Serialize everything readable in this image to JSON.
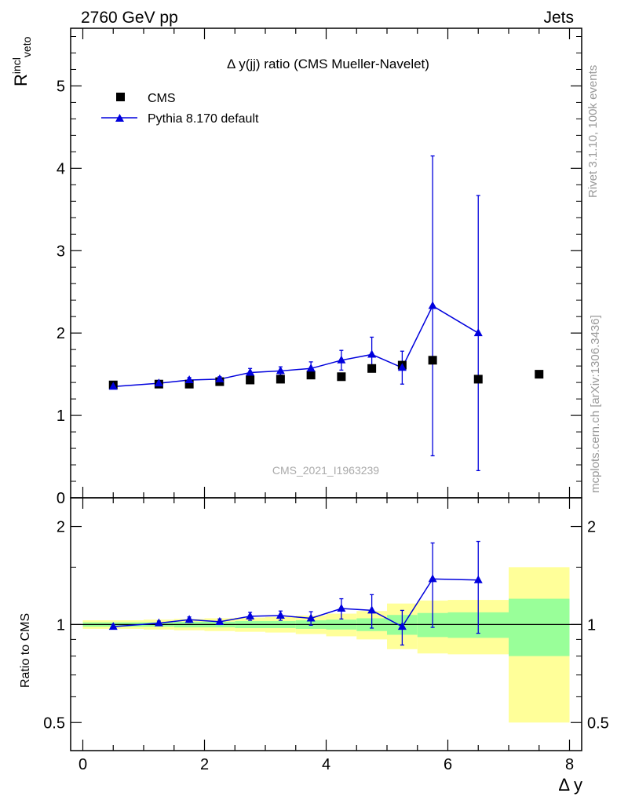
{
  "header": {
    "left": "2760 GeV pp",
    "right": "Jets"
  },
  "side_labels": {
    "rivet": "Rivet 3.1.10,  100k events",
    "mcplots": "mcplots.cern.ch [arXiv:1306.3436]"
  },
  "colors": {
    "data": "#000000",
    "mc": "#0000dd",
    "band_inner": "#99ff99",
    "band_outer": "#ffff99"
  },
  "chart_data": [
    {
      "type": "scatter",
      "title": "Δ y(jj) ratio (CMS Mueller-Navelet)",
      "ylabel": "R^incl_veto",
      "watermark": "CMS_2021_I1963239",
      "ylim": [
        0,
        5.7
      ],
      "xlim": [
        -0.2,
        8.2
      ],
      "yticks": [
        "0",
        "1",
        "2",
        "3",
        "4",
        "5"
      ],
      "legend": [
        "CMS",
        "Pythia 8.170 default"
      ],
      "legend_position": "top-left",
      "series": [
        {
          "name": "CMS",
          "marker": "square",
          "x": [
            0.5,
            1.25,
            1.75,
            2.25,
            2.75,
            3.25,
            3.75,
            4.25,
            4.75,
            5.25,
            5.75,
            6.5,
            7.5
          ],
          "y": [
            1.37,
            1.38,
            1.38,
            1.41,
            1.43,
            1.44,
            1.49,
            1.47,
            1.57,
            1.61,
            1.67,
            1.44,
            1.5
          ]
        },
        {
          "name": "Pythia 8.170 default",
          "marker": "triangle",
          "x": [
            0.5,
            1.25,
            1.75,
            2.25,
            2.75,
            3.25,
            3.75,
            4.25,
            4.75,
            5.25,
            5.75,
            6.5
          ],
          "y": [
            1.35,
            1.39,
            1.43,
            1.44,
            1.52,
            1.54,
            1.57,
            1.67,
            1.74,
            1.58,
            2.33,
            2.0
          ],
          "err": [
            0.02,
            0.02,
            0.03,
            0.03,
            0.05,
            0.05,
            0.08,
            0.12,
            0.21,
            0.2,
            1.82,
            1.67
          ]
        }
      ]
    },
    {
      "type": "line",
      "ylabel": "Ratio to CMS",
      "xlabel": "Δ y",
      "scale": "log",
      "ylim": [
        0.41,
        2.45
      ],
      "xlim": [
        -0.2,
        8.2
      ],
      "xticks": [
        "0",
        "2",
        "4",
        "6",
        "8"
      ],
      "yticks": [
        "0.5",
        "1",
        "2"
      ],
      "grid": false,
      "series": [
        {
          "name": "Pythia 8.170 default",
          "x": [
            0.5,
            1.25,
            1.75,
            2.25,
            2.75,
            3.25,
            3.75,
            4.25,
            4.75,
            5.25,
            5.75,
            6.5
          ],
          "y": [
            0.985,
            1.01,
            1.035,
            1.02,
            1.06,
            1.065,
            1.045,
            1.12,
            1.105,
            0.985,
            1.38,
            1.37
          ],
          "err": [
            0.015,
            0.015,
            0.02,
            0.02,
            0.03,
            0.035,
            0.05,
            0.08,
            0.13,
            0.12,
            0.4,
            0.43
          ]
        }
      ],
      "bands": [
        {
          "x0": 0.0,
          "x1": 0.5,
          "inner": [
            0.985,
            1.015
          ],
          "outer": [
            0.97,
            1.03
          ]
        },
        {
          "x0": 0.5,
          "x1": 1.0,
          "inner": [
            0.985,
            1.015
          ],
          "outer": [
            0.97,
            1.03
          ]
        },
        {
          "x0": 1.0,
          "x1": 1.5,
          "inner": [
            0.985,
            1.015
          ],
          "outer": [
            0.965,
            1.035
          ]
        },
        {
          "x0": 1.5,
          "x1": 2.0,
          "inner": [
            0.98,
            1.02
          ],
          "outer": [
            0.96,
            1.04
          ]
        },
        {
          "x0": 2.0,
          "x1": 2.5,
          "inner": [
            0.98,
            1.02
          ],
          "outer": [
            0.955,
            1.045
          ]
        },
        {
          "x0": 2.5,
          "x1": 3.0,
          "inner": [
            0.975,
            1.025
          ],
          "outer": [
            0.95,
            1.05
          ]
        },
        {
          "x0": 3.0,
          "x1": 3.5,
          "inner": [
            0.975,
            1.025
          ],
          "outer": [
            0.945,
            1.055
          ]
        },
        {
          "x0": 3.5,
          "x1": 4.0,
          "inner": [
            0.97,
            1.03
          ],
          "outer": [
            0.935,
            1.065
          ]
        },
        {
          "x0": 4.0,
          "x1": 4.5,
          "inner": [
            0.965,
            1.035
          ],
          "outer": [
            0.92,
            1.08
          ]
        },
        {
          "x0": 4.5,
          "x1": 5.0,
          "inner": [
            0.955,
            1.045
          ],
          "outer": [
            0.9,
            1.1
          ]
        },
        {
          "x0": 5.0,
          "x1": 5.5,
          "inner": [
            0.93,
            1.07
          ],
          "outer": [
            0.84,
            1.16
          ]
        },
        {
          "x0": 5.5,
          "x1": 6.0,
          "inner": [
            0.915,
            1.085
          ],
          "outer": [
            0.815,
            1.185
          ]
        },
        {
          "x0": 6.0,
          "x1": 7.0,
          "inner": [
            0.91,
            1.09
          ],
          "outer": [
            0.81,
            1.19
          ]
        },
        {
          "x0": 7.0,
          "x1": 8.0,
          "inner": [
            0.8,
            1.2
          ],
          "outer": [
            0.5,
            1.5
          ]
        }
      ]
    }
  ]
}
